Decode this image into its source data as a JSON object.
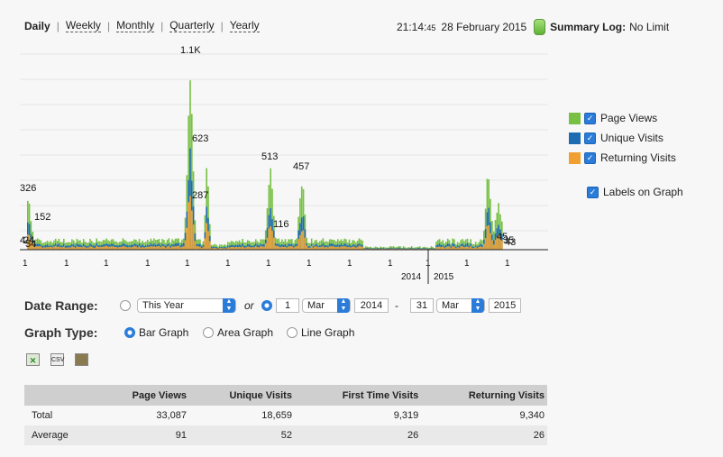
{
  "periods": {
    "daily": "Daily",
    "weekly": "Weekly",
    "monthly": "Monthly",
    "quarterly": "Quarterly",
    "yearly": "Yearly"
  },
  "header": {
    "time": "21:14:",
    "time_sec": "45",
    "date": "28 February 2015",
    "summary_label": "Summary Log:",
    "summary_value": "No Limit"
  },
  "colors": {
    "page_views": "#77c044",
    "unique_visits": "#1d6bb0",
    "returning_visits": "#f0a030",
    "accent": "#2a7cd8"
  },
  "chart_data": {
    "type": "bar",
    "series": [
      {
        "name": "Page Views",
        "peaks": [
          326,
          1100,
          513,
          457
        ]
      },
      {
        "name": "Unique Visits",
        "peaks": [
          152,
          623,
          116
        ]
      },
      {
        "name": "Returning Visits",
        "peaks": [
          287,
          45
        ]
      }
    ],
    "data_labels": [
      "326",
      "1.1K",
      "623",
      "287",
      "513",
      "116",
      "457",
      "152",
      "4",
      "24",
      "54",
      "45",
      "35",
      "43"
    ],
    "x_tick_labels": [
      "1",
      "1",
      "1",
      "1",
      "1",
      "1",
      "1",
      "1",
      "1",
      "1",
      "1",
      "1",
      "1"
    ],
    "year_labels": [
      "2014",
      "2015"
    ]
  },
  "legend": {
    "page_views": "Page Views",
    "unique_visits": "Unique Visits",
    "returning_visits": "Returning Visits",
    "labels_on_graph": "Labels on Graph"
  },
  "date_range": {
    "label": "Date Range:",
    "preset": "This Year",
    "or": "or",
    "from_day": "1",
    "from_month": "Mar",
    "from_year": "2014",
    "dash": "-",
    "to_day": "31",
    "to_month": "Mar",
    "to_year": "2015"
  },
  "graph_type": {
    "label": "Graph Type:",
    "bar": "Bar Graph",
    "area": "Area Graph",
    "line": "Line Graph"
  },
  "exports": {
    "csv": "CSV"
  },
  "table": {
    "headers": [
      "",
      "Page Views",
      "Unique Visits",
      "First Time Visits",
      "Returning Visits"
    ],
    "rows": [
      [
        "Total",
        "33,087",
        "18,659",
        "9,319",
        "9,340"
      ],
      [
        "Average",
        "91",
        "52",
        "26",
        "26"
      ]
    ]
  }
}
